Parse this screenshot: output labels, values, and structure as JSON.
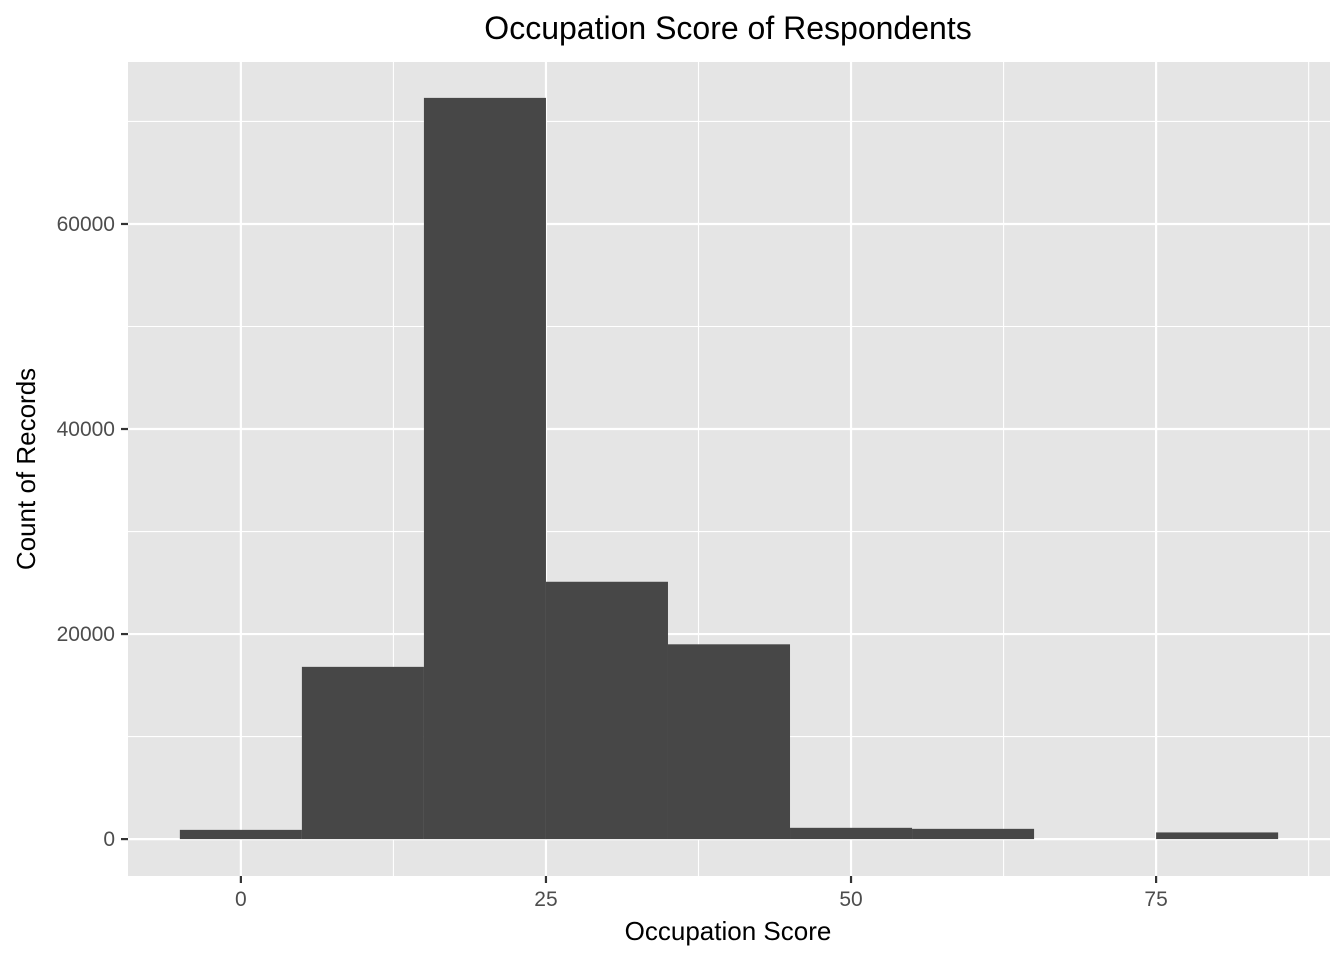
{
  "chart_data": {
    "type": "bar",
    "title": "Occupation Score of Respondents",
    "xlabel": "Occupation Score",
    "ylabel": "Count of Records",
    "xlim": [
      -9.25,
      89.25
    ],
    "ylim": [
      -3600,
      75800
    ],
    "x_ticks": [
      0,
      25,
      50,
      75
    ],
    "y_ticks": [
      0,
      20000,
      40000,
      60000
    ],
    "grid": true,
    "bin_width": 10,
    "bins": [
      {
        "x0": -5,
        "x1": 5,
        "count": 900
      },
      {
        "x0": 5,
        "x1": 15,
        "count": 16800
      },
      {
        "x0": 15,
        "x1": 25,
        "count": 72300
      },
      {
        "x0": 25,
        "x1": 35,
        "count": 25100
      },
      {
        "x0": 35,
        "x1": 45,
        "count": 19000
      },
      {
        "x0": 45,
        "x1": 55,
        "count": 1100
      },
      {
        "x0": 55,
        "x1": 65,
        "count": 1000
      },
      {
        "x0": 65,
        "x1": 75,
        "count": 0
      },
      {
        "x0": 75,
        "x1": 85,
        "count": 650
      }
    ],
    "colors": {
      "panel_background": "#e5e5e5",
      "grid_major": "#ffffff",
      "bar_fill": "#474747",
      "text": "#000000",
      "tick_text": "#4d4d4d"
    }
  }
}
